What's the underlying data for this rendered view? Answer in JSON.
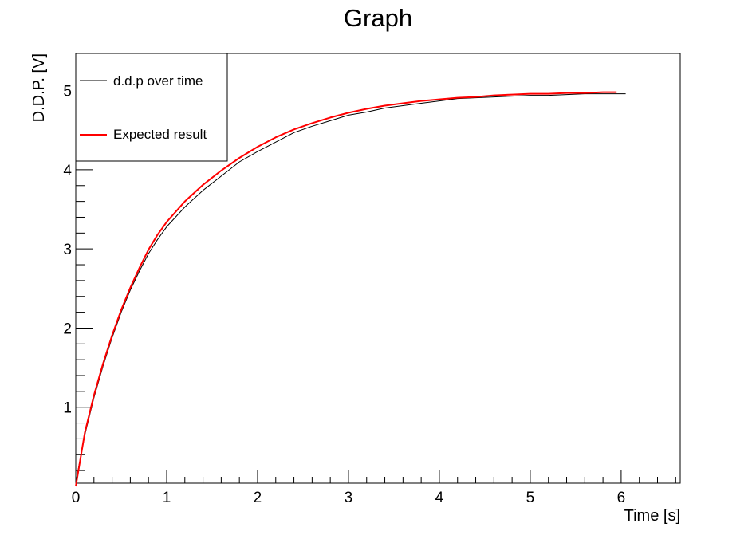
{
  "chart_data": {
    "type": "line",
    "title": "Graph",
    "xlabel": "Time [s]",
    "ylabel": "D.D.P. [V]",
    "xlim": [
      0,
      6.65
    ],
    "ylim": [
      0.04,
      5.47
    ],
    "x_ticks": [
      0,
      1,
      2,
      3,
      4,
      5,
      6
    ],
    "x_tick_labels": [
      "0",
      "1",
      "2",
      "3",
      "4",
      "5",
      "6"
    ],
    "y_ticks": [
      1,
      2,
      3,
      4,
      5
    ],
    "y_tick_labels": [
      "1",
      "2",
      "3",
      "4",
      "5"
    ],
    "grid": false,
    "legend_position": "top-left",
    "series": [
      {
        "name": "d.d.p over time",
        "color": "#000000",
        "x": [
          0,
          0.1,
          0.2,
          0.3,
          0.4,
          0.5,
          0.6,
          0.7,
          0.8,
          0.9,
          1.0,
          1.2,
          1.4,
          1.6,
          1.8,
          2.0,
          2.2,
          2.4,
          2.6,
          2.8,
          3.0,
          3.2,
          3.4,
          3.6,
          3.8,
          4.0,
          4.2,
          4.4,
          4.6,
          4.8,
          5.0,
          5.2,
          5.4,
          5.6,
          5.8,
          6.0,
          6.05
        ],
        "y": [
          0.05,
          0.65,
          1.12,
          1.52,
          1.88,
          2.2,
          2.48,
          2.72,
          2.94,
          3.12,
          3.28,
          3.53,
          3.74,
          3.92,
          4.1,
          4.23,
          4.35,
          4.47,
          4.55,
          4.62,
          4.69,
          4.73,
          4.78,
          4.81,
          4.84,
          4.87,
          4.9,
          4.91,
          4.92,
          4.93,
          4.94,
          4.94,
          4.95,
          4.96,
          4.96,
          4.96,
          4.96
        ]
      },
      {
        "name": "Expected result",
        "color": "#ff0000",
        "x": [
          0,
          0.1,
          0.2,
          0.3,
          0.4,
          0.5,
          0.6,
          0.7,
          0.8,
          0.9,
          1.0,
          1.2,
          1.4,
          1.6,
          1.8,
          2.0,
          2.2,
          2.4,
          2.6,
          2.8,
          3.0,
          3.2,
          3.4,
          3.6,
          3.8,
          4.0,
          4.2,
          4.4,
          4.6,
          4.8,
          5.0,
          5.2,
          5.4,
          5.6,
          5.8,
          5.95
        ],
        "y": [
          0.0,
          0.68,
          1.15,
          1.55,
          1.91,
          2.23,
          2.51,
          2.76,
          2.99,
          3.18,
          3.34,
          3.6,
          3.81,
          3.99,
          4.15,
          4.29,
          4.41,
          4.51,
          4.59,
          4.66,
          4.72,
          4.77,
          4.81,
          4.84,
          4.87,
          4.89,
          4.91,
          4.92,
          4.94,
          4.95,
          4.96,
          4.96,
          4.97,
          4.97,
          4.98,
          4.98
        ]
      }
    ]
  }
}
